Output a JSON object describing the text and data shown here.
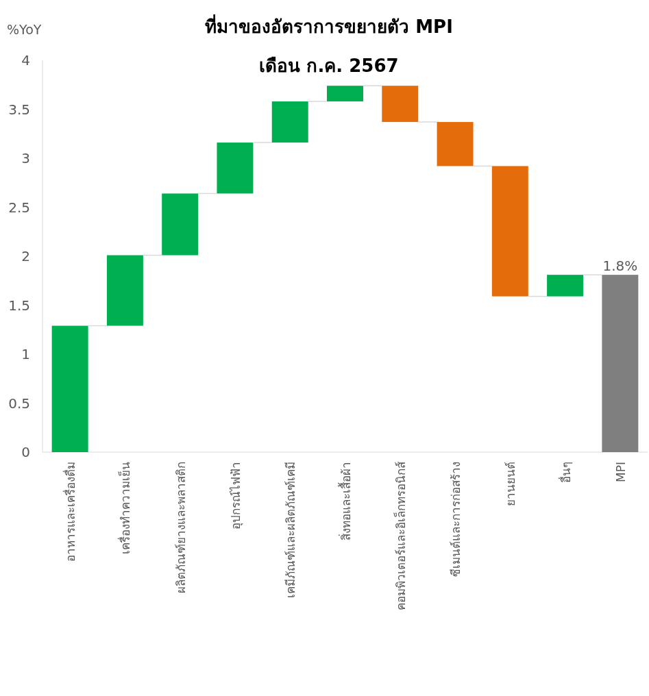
{
  "chart_data": {
    "type": "bar",
    "title": "ที่มาของอัตราการขยายตัว MPI",
    "subtitle": "เดือน ก.ค. 2567",
    "ylabel": "%YoY",
    "categories": [
      "อาหารและเครื่องดื่ม",
      "เครื่องทำความเย็น",
      "ผลิตภัณฑ์ยางและพลาสติก",
      "อุปกรณ์ไฟฟ้า",
      "เคมีภัณฑ์และผลิตภัณฑ์เคมี",
      "สิ่งทอและเสื้อผ้า",
      "คอมพิวเตอร์และอิเล็กทรอนิกส์",
      "ซีเมนต์และการก่อสร้าง",
      "ยานยนต์",
      "อื่นๆ",
      "MPI"
    ],
    "base": [
      0,
      1.29,
      2.01,
      2.64,
      3.16,
      3.58,
      3.74,
      3.37,
      2.92,
      1.59,
      0
    ],
    "values": [
      1.29,
      0.72,
      0.63,
      0.52,
      0.42,
      0.16,
      -0.37,
      -0.45,
      -1.33,
      0.22,
      1.81
    ],
    "colors": [
      "#00b050",
      "#00b050",
      "#00b050",
      "#00b050",
      "#00b050",
      "#00b050",
      "#e46c0a",
      "#e46c0a",
      "#e46c0a",
      "#00b050",
      "#7f7f7f"
    ],
    "value_labels": [
      null,
      null,
      null,
      null,
      null,
      null,
      null,
      null,
      null,
      null,
      "1.8%"
    ],
    "ylim": [
      0,
      4
    ],
    "yticks": [
      0,
      0.5,
      1,
      1.5,
      2,
      2.5,
      3,
      3.5,
      4
    ],
    "grid": false
  }
}
